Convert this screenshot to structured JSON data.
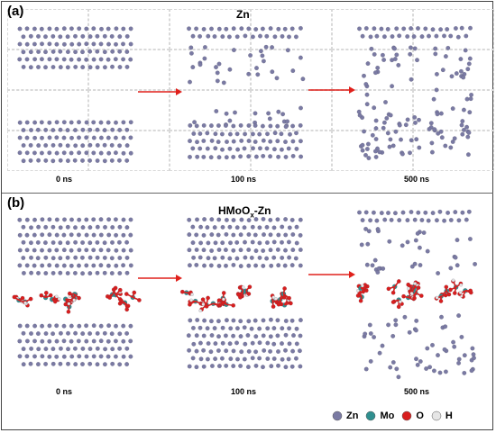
{
  "panel_a": {
    "label": "(a)",
    "title": "Zn",
    "times": [
      "0 ns",
      "100 ns",
      "500 ns"
    ]
  },
  "panel_b": {
    "label": "(b)",
    "title_main": "HMoO",
    "title_sub": "x",
    "title_tail": "-Zn",
    "times": [
      "0 ns",
      "100 ns",
      "500 ns"
    ]
  },
  "legend": [
    {
      "label": "Zn",
      "color": "#7a7aa3"
    },
    {
      "label": "Mo",
      "color": "#2f8f8f"
    },
    {
      "label": "O",
      "color": "#d81e1e"
    },
    {
      "label": "H",
      "color": "#e6e6e6"
    }
  ],
  "arrow_color": "#e0201b"
}
